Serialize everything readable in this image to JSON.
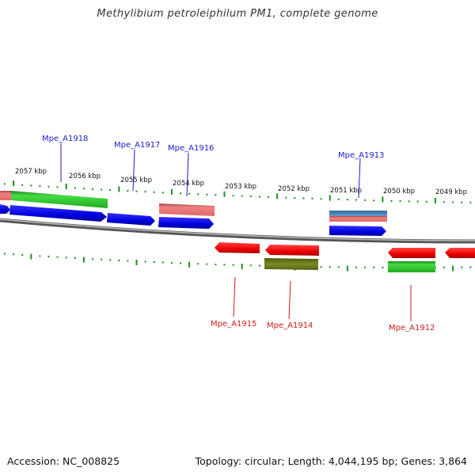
{
  "title": "Methylibium petroleiphilum PM1, complete genome",
  "footer": {
    "accession": "Accession: NC_008825",
    "topology": "Topology: circular; Length: 4,044,195 bp; Genes: 3,864"
  },
  "ruler_labels": [
    "2057 kbp",
    "2056 kbp",
    "2055 kbp",
    "2054 kbp",
    "2053 kbp",
    "2052 kbp",
    "2051 kbp",
    "2050 kbp",
    "2049 kbp"
  ],
  "gene_labels": [
    {
      "name": "Mpe_A1918",
      "strand": "forward"
    },
    {
      "name": "Mpe_A1917",
      "strand": "forward"
    },
    {
      "name": "Mpe_A1916",
      "strand": "forward"
    },
    {
      "name": "Mpe_A1913",
      "strand": "forward"
    },
    {
      "name": "Mpe_A1915",
      "strand": "reverse"
    },
    {
      "name": "Mpe_A1914",
      "strand": "reverse"
    },
    {
      "name": "Mpe_A1912",
      "strand": "reverse"
    }
  ],
  "colors": {
    "forward_label": "#1a1acc",
    "reverse_label": "#cc1a1a",
    "cds_forward": "#0000dd",
    "cds_reverse": "#ee0000",
    "gene_green": "#33cc33",
    "gene_pink": "#f08080",
    "gene_olive": "#6b7a1a",
    "gene_steelblue": "#4682b4",
    "tick": "#228b22",
    "backbone": "#808080"
  }
}
